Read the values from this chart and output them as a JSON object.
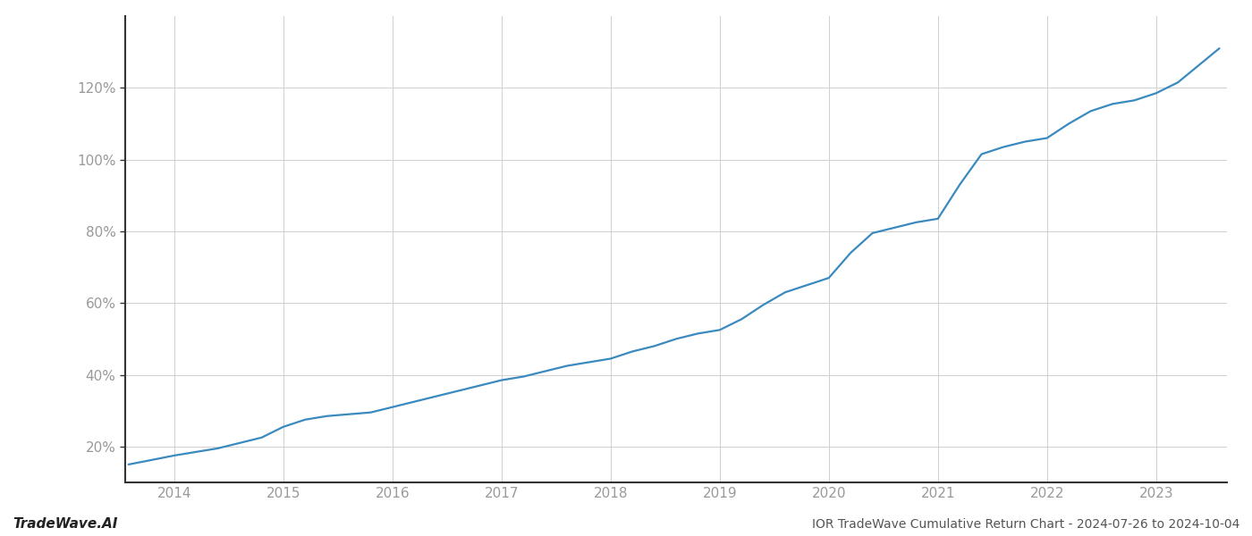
{
  "title": "IOR TradeWave Cumulative Return Chart - 2024-07-26 to 2024-10-04",
  "watermark": "TradeWave.AI",
  "line_color": "#3a8abf",
  "background_color": "#ffffff",
  "grid_color": "#d0d0d0",
  "x_values": [
    2013.58,
    2013.75,
    2014.0,
    2014.2,
    2014.4,
    2014.6,
    2014.8,
    2015.0,
    2015.2,
    2015.4,
    2015.6,
    2015.8,
    2016.0,
    2016.2,
    2016.4,
    2016.6,
    2016.8,
    2017.0,
    2017.2,
    2017.4,
    2017.6,
    2017.8,
    2018.0,
    2018.1,
    2018.2,
    2018.4,
    2018.6,
    2018.8,
    2019.0,
    2019.2,
    2019.4,
    2019.6,
    2019.8,
    2020.0,
    2020.2,
    2020.4,
    2020.6,
    2020.8,
    2021.0,
    2021.2,
    2021.4,
    2021.6,
    2021.8,
    2022.0,
    2022.2,
    2022.4,
    2022.6,
    2022.8,
    2023.0,
    2023.2,
    2023.4,
    2023.58
  ],
  "y_values": [
    15.0,
    16.0,
    17.5,
    18.5,
    19.5,
    21.0,
    22.5,
    25.5,
    27.5,
    28.5,
    29.0,
    29.5,
    31.0,
    32.5,
    34.0,
    35.5,
    37.0,
    38.5,
    39.5,
    41.0,
    42.5,
    43.5,
    44.5,
    45.5,
    46.5,
    48.0,
    50.0,
    51.5,
    52.5,
    55.5,
    59.5,
    63.0,
    65.0,
    67.0,
    74.0,
    79.5,
    81.0,
    82.5,
    83.5,
    93.0,
    101.5,
    103.5,
    105.0,
    106.0,
    110.0,
    113.5,
    115.5,
    116.5,
    118.5,
    121.5,
    126.5,
    131.0
  ],
  "xticks": [
    2014,
    2015,
    2016,
    2017,
    2018,
    2019,
    2020,
    2021,
    2022,
    2023
  ],
  "yticks": [
    20,
    40,
    60,
    80,
    100,
    120
  ],
  "ytick_labels": [
    "20%",
    "40%",
    "60%",
    "80%",
    "100%",
    "120%"
  ],
  "xlim": [
    2013.55,
    2023.65
  ],
  "ylim": [
    10,
    140
  ],
  "line_width": 1.6,
  "title_fontsize": 10,
  "watermark_fontsize": 11,
  "tick_fontsize": 11,
  "tick_color": "#999999",
  "spine_color": "#333333",
  "left_spine_color": "#333333"
}
